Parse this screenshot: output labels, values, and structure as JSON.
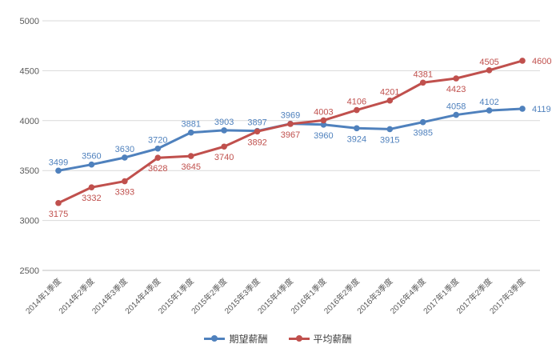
{
  "chart_data": {
    "type": "line",
    "title": "",
    "categories": [
      "2014年1季度",
      "2014年2季度",
      "2014年3季度",
      "2014年4季度",
      "2015年1季度",
      "2015年2季度",
      "2015年3季度",
      "2015年4季度",
      "2016年1季度",
      "2016年2季度",
      "2016年3季度",
      "2016年4季度",
      "2017年1季度",
      "2017年2季度",
      "2017年3季度"
    ],
    "series": [
      {
        "name": "期望薪酬",
        "color": "#4F81BD",
        "values": [
          3499,
          3560,
          3630,
          3720,
          3881,
          3903,
          3897,
          3969,
          3960,
          3924,
          3915,
          3985,
          4058,
          4102,
          4119
        ],
        "label_positions": [
          "above",
          "above",
          "above",
          "above",
          "above",
          "above",
          "above",
          "above",
          "below",
          "below",
          "below",
          "below",
          "above",
          "above",
          "right"
        ]
      },
      {
        "name": "平均薪酬",
        "color": "#C0504D",
        "values": [
          3175,
          3332,
          3393,
          3628,
          3645,
          3740,
          3892,
          3967,
          4003,
          4106,
          4201,
          4381,
          4423,
          4505,
          4600
        ],
        "label_positions": [
          "below",
          "below",
          "below",
          "below",
          "below",
          "below",
          "below",
          "below",
          "above",
          "above",
          "above",
          "above",
          "below",
          "above",
          "right"
        ]
      }
    ],
    "y_axis": {
      "min": 2500,
      "max": 5000,
      "step": 500,
      "tick_labels": [
        "5000",
        "4500",
        "4000",
        "3500",
        "3000",
        "2500"
      ]
    },
    "grid": true,
    "legend_position": "bottom-center"
  },
  "colors": {
    "background": "#FFFFFF",
    "gridline": "#D9D9D9",
    "axis_line": "#BFBFBF",
    "tick_text": "#595959",
    "series_blue": "#4F81BD",
    "series_red": "#C0504D"
  }
}
